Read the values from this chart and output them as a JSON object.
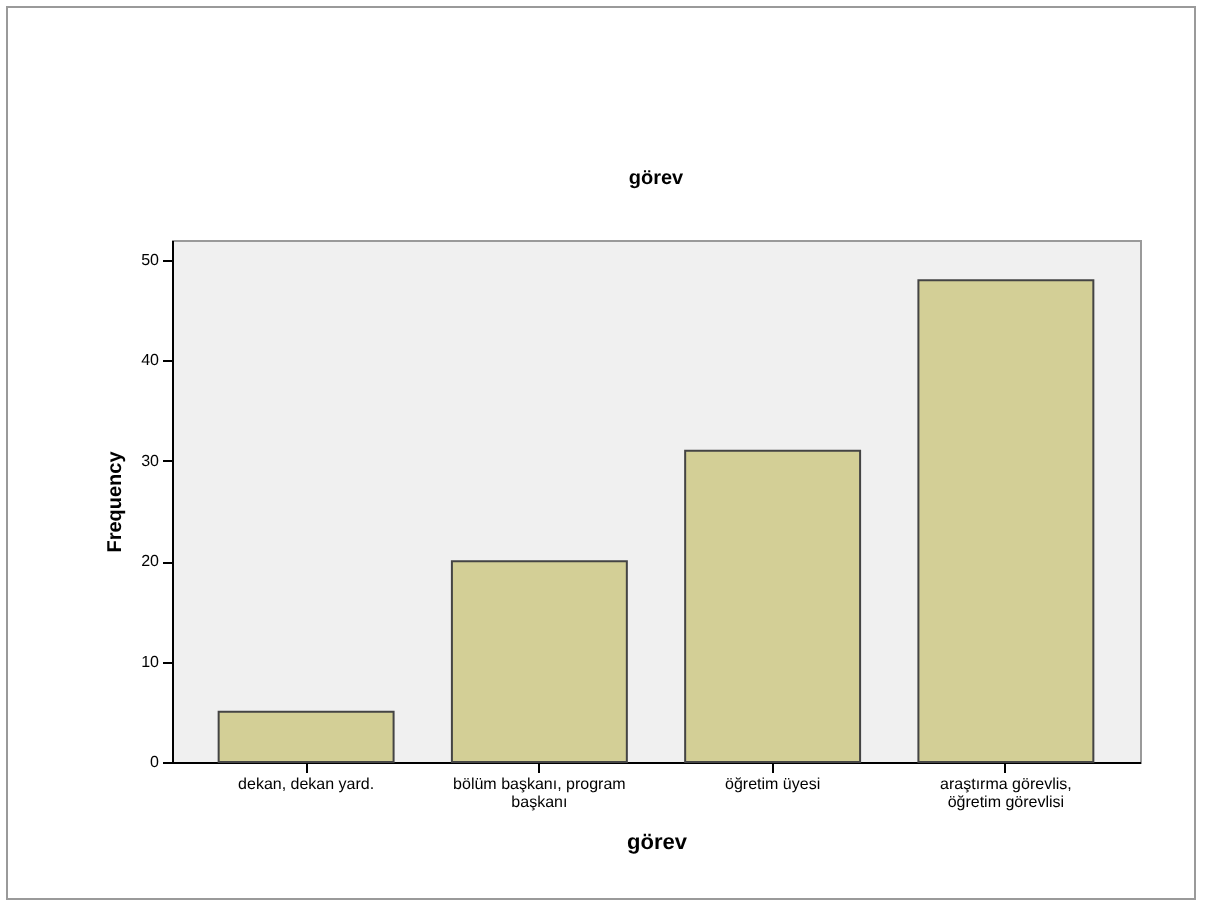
{
  "chart_data": {
    "type": "bar",
    "title": "görev",
    "xlabel": "görev",
    "ylabel": "Frequency",
    "categories": [
      "dekan, dekan yard.",
      "bölüm başkanı, program başkanı",
      "öğretim üyesi",
      "araştırma görevlis, öğretim görevlisi"
    ],
    "values": [
      5,
      20,
      31,
      48
    ],
    "color": "#d3cf96",
    "ylim": [
      0,
      52
    ],
    "yticks": [
      0,
      10,
      20,
      30,
      40,
      50
    ]
  }
}
